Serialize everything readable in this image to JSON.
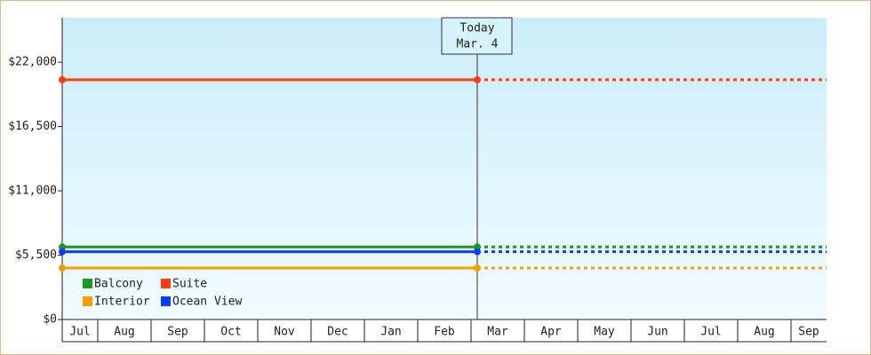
{
  "chart_data": {
    "type": "line",
    "categories": [
      "Jul",
      "Aug",
      "Sep",
      "Oct",
      "Nov",
      "Dec",
      "Jan",
      "Feb",
      "Mar",
      "Apr",
      "May",
      "Jun",
      "Jul",
      "Aug",
      "Sep"
    ],
    "series": [
      {
        "name": "Balcony",
        "color": "#1a9a1a",
        "value": 6200
      },
      {
        "name": "Suite",
        "color": "#ff3c10",
        "value": 20500
      },
      {
        "name": "Interior",
        "color": "#f5a000",
        "value": 4400
      },
      {
        "name": "Ocean View",
        "color": "#0a3cff",
        "value": 5800
      }
    ],
    "annotation": {
      "label": "Today",
      "date": "Mar. 4"
    },
    "ylim": [
      0,
      25800
    ],
    "yticks": [
      {
        "value": 0,
        "label": "$0"
      },
      {
        "value": 5500,
        "label": "$5,500"
      },
      {
        "value": 11000,
        "label": "$11,000"
      },
      {
        "value": 16500,
        "label": "$16,500"
      },
      {
        "value": 22000,
        "label": "$22,000"
      }
    ]
  }
}
